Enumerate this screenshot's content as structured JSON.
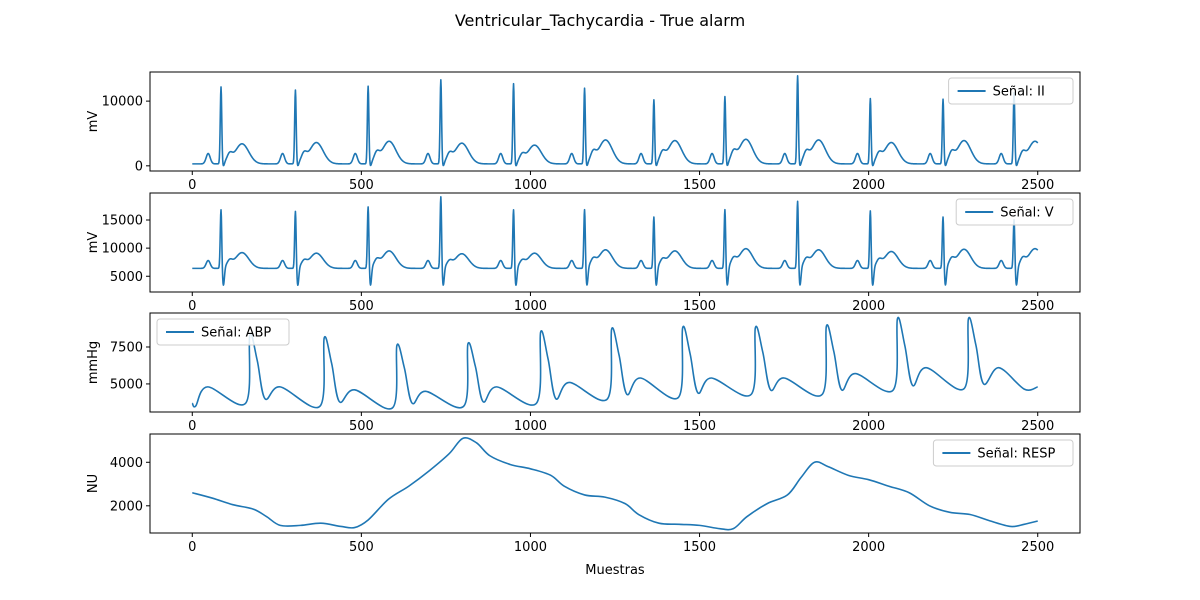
{
  "figure": {
    "title": "Ventricular_Tachycardia - True alarm",
    "xlabel": "Muestras"
  },
  "colors": {
    "line": "#1f77b4",
    "axes": "#000000",
    "legend_border": "#cccccc",
    "background": "#ffffff"
  },
  "chart_data": [
    {
      "type": "line",
      "title": "",
      "ylabel": "mV",
      "xlim": [
        -125,
        2625
      ],
      "ylim": [
        -800,
        14500
      ],
      "xticks": [
        0,
        500,
        1000,
        1500,
        2000,
        2500
      ],
      "xtick_labels": [
        "0",
        "500",
        "1000",
        "1500",
        "2000",
        "2500"
      ],
      "yticks": [
        0,
        10000
      ],
      "ytick_labels": [
        "0",
        "10000"
      ],
      "legend_position": "upper right",
      "series": [
        {
          "name": "Señal: II",
          "kind": "ecg",
          "beats": [
            {
              "x": 85,
              "peak": 12200,
              "tpeak": 3400
            },
            {
              "x": 305,
              "peak": 11700,
              "tpeak": 3600
            },
            {
              "x": 520,
              "peak": 12300,
              "tpeak": 3800
            },
            {
              "x": 735,
              "peak": 13300,
              "tpeak": 3500
            },
            {
              "x": 950,
              "peak": 12700,
              "tpeak": 3200
            },
            {
              "x": 1160,
              "peak": 12000,
              "tpeak": 4000
            },
            {
              "x": 1365,
              "peak": 10200,
              "tpeak": 3900
            },
            {
              "x": 1575,
              "peak": 10700,
              "tpeak": 4100
            },
            {
              "x": 1790,
              "peak": 13900,
              "tpeak": 4000
            },
            {
              "x": 2005,
              "peak": 10400,
              "tpeak": 3600
            },
            {
              "x": 2220,
              "peak": 10300,
              "tpeak": 3900
            },
            {
              "x": 2430,
              "peak": 11300,
              "tpeak": 3800
            }
          ],
          "baseline": 300,
          "s_depth": 500,
          "p_amp": 1900,
          "x_start": 0,
          "x_end": 2500
        }
      ]
    },
    {
      "type": "line",
      "title": "",
      "ylabel": "mV",
      "xlim": [
        -125,
        2625
      ],
      "ylim": [
        2200,
        19800
      ],
      "xticks": [
        0,
        500,
        1000,
        1500,
        2000,
        2500
      ],
      "xtick_labels": [
        "0",
        "500",
        "1000",
        "1500",
        "2000",
        "2500"
      ],
      "yticks": [
        5000,
        10000,
        15000
      ],
      "ytick_labels": [
        "5000",
        "10000",
        "15000"
      ],
      "legend_position": "upper right",
      "series": [
        {
          "name": "Señal: V",
          "kind": "ecg",
          "beats": [
            {
              "x": 85,
              "peak": 17000,
              "tpeak": 9200
            },
            {
              "x": 305,
              "peak": 16700,
              "tpeak": 9100
            },
            {
              "x": 520,
              "peak": 17500,
              "tpeak": 9500
            },
            {
              "x": 735,
              "peak": 19300,
              "tpeak": 9000
            },
            {
              "x": 950,
              "peak": 17000,
              "tpeak": 9100
            },
            {
              "x": 1160,
              "peak": 17000,
              "tpeak": 9700
            },
            {
              "x": 1365,
              "peak": 15700,
              "tpeak": 9500
            },
            {
              "x": 1575,
              "peak": 17000,
              "tpeak": 9900
            },
            {
              "x": 1790,
              "peak": 18500,
              "tpeak": 9700
            },
            {
              "x": 2005,
              "peak": 16800,
              "tpeak": 9400
            },
            {
              "x": 2220,
              "peak": 15700,
              "tpeak": 9800
            },
            {
              "x": 2430,
              "peak": 15200,
              "tpeak": 9900
            }
          ],
          "baseline": 6400,
          "s_depth": 3200,
          "p_amp": 7800,
          "x_start": 0,
          "x_end": 2500
        }
      ]
    },
    {
      "type": "line",
      "title": "",
      "ylabel": "mmHg",
      "xlim": [
        -125,
        2625
      ],
      "ylim": [
        3100,
        9800
      ],
      "xticks": [
        0,
        500,
        1000,
        1500,
        2000,
        2500
      ],
      "xtick_labels": [
        "0",
        "500",
        "1000",
        "1500",
        "2000",
        "2500"
      ],
      "yticks": [
        5000,
        7500
      ],
      "ytick_labels": [
        "5000",
        "7500"
      ],
      "legend_position": "upper left",
      "series": [
        {
          "name": "Señal: ABP",
          "kind": "abp",
          "beats": [
            {
              "x": 0,
              "peak": 3700,
              "trough": 3500
            },
            {
              "x": 170,
              "peak": 8300,
              "trough": 3700
            },
            {
              "x": 390,
              "peak": 8100,
              "trough": 3500
            },
            {
              "x": 605,
              "peak": 7600,
              "trough": 3400
            },
            {
              "x": 815,
              "peak": 7700,
              "trough": 3500
            },
            {
              "x": 1030,
              "peak": 8500,
              "trough": 3700
            },
            {
              "x": 1240,
              "peak": 8700,
              "trough": 4000
            },
            {
              "x": 1450,
              "peak": 8800,
              "trough": 4100
            },
            {
              "x": 1665,
              "peak": 8800,
              "trough": 4300
            },
            {
              "x": 1875,
              "peak": 8900,
              "trough": 4300
            },
            {
              "x": 2085,
              "peak": 9400,
              "trough": 4600
            },
            {
              "x": 2295,
              "peak": 9400,
              "trough": 4700
            }
          ],
          "secondary_peak": [
            {
              "x": 45,
              "y": 4800
            },
            {
              "x": 260,
              "y": 4800
            },
            {
              "x": 480,
              "y": 4600
            },
            {
              "x": 690,
              "y": 4500
            },
            {
              "x": 900,
              "y": 4800
            },
            {
              "x": 1115,
              "y": 5100
            },
            {
              "x": 1325,
              "y": 5400
            },
            {
              "x": 1535,
              "y": 5400
            },
            {
              "x": 1750,
              "y": 5400
            },
            {
              "x": 1960,
              "y": 5700
            },
            {
              "x": 2170,
              "y": 6100
            },
            {
              "x": 2385,
              "y": 6100
            }
          ],
          "end": {
            "x": 2500,
            "y": 4800
          },
          "x_start": 0,
          "x_end": 2500
        }
      ]
    },
    {
      "type": "line",
      "title": "",
      "ylabel": "NU",
      "xlim": [
        -125,
        2625
      ],
      "ylim": [
        750,
        5300
      ],
      "xticks": [
        0,
        500,
        1000,
        1500,
        2000,
        2500
      ],
      "xtick_labels": [
        "0",
        "500",
        "1000",
        "1500",
        "2000",
        "2500"
      ],
      "yticks": [
        2000,
        4000
      ],
      "ytick_labels": [
        "2000",
        "4000"
      ],
      "legend_position": "upper right",
      "series": [
        {
          "name": "Señal: RESP",
          "kind": "smooth",
          "x": [
            0,
            60,
            120,
            180,
            220,
            260,
            320,
            380,
            440,
            480,
            520,
            580,
            640,
            700,
            760,
            800,
            840,
            880,
            940,
            1000,
            1060,
            1100,
            1160,
            1220,
            1280,
            1320,
            1380,
            1440,
            1500,
            1560,
            1600,
            1640,
            1700,
            1760,
            1800,
            1840,
            1880,
            1940,
            2000,
            2060,
            2120,
            2180,
            2240,
            2300,
            2360,
            2420,
            2460,
            2500
          ],
          "y": [
            2600,
            2350,
            2050,
            1850,
            1500,
            1100,
            1100,
            1200,
            1050,
            1000,
            1350,
            2300,
            2900,
            3600,
            4400,
            5100,
            4900,
            4300,
            3900,
            3700,
            3400,
            2900,
            2500,
            2400,
            2100,
            1600,
            1200,
            1150,
            1100,
            950,
            950,
            1500,
            2100,
            2500,
            3300,
            4000,
            3800,
            3400,
            3200,
            2900,
            2600,
            2000,
            1700,
            1600,
            1300,
            1050,
            1150,
            1300
          ]
        }
      ]
    }
  ]
}
